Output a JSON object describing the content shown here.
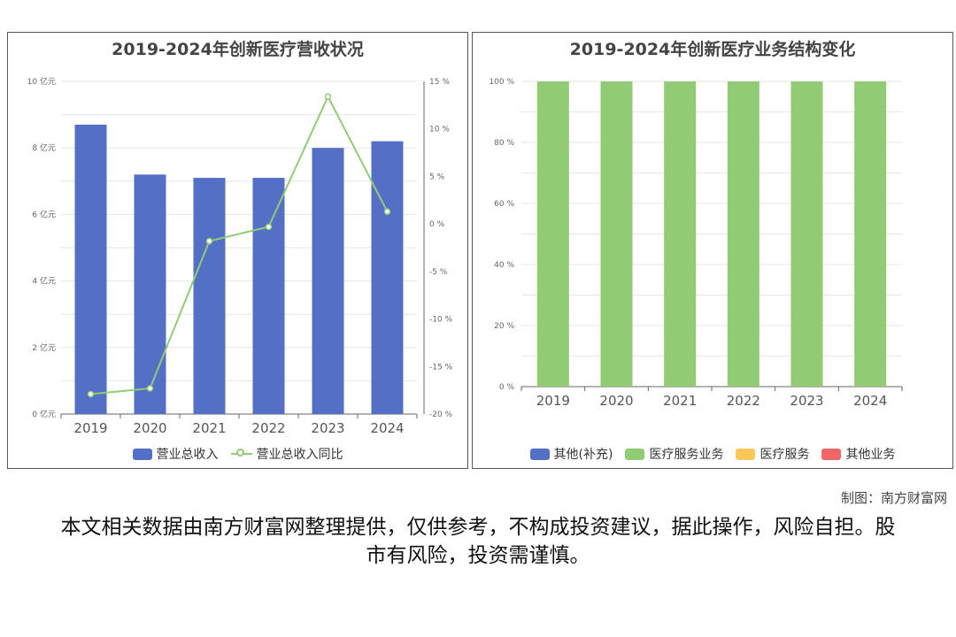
{
  "credit": "制图：南方财富网",
  "disclaimer": "本文相关数据由南方财富网整理提供，仅供参考，不构成投资建议，据此操作，风险自担。股市有风险，投资需谨慎。",
  "chart_data": [
    {
      "type": "bar",
      "title": "2019-2024年创新医疗营收状况",
      "categories": [
        "2019",
        "2020",
        "2021",
        "2022",
        "2023",
        "2024"
      ],
      "y_left": {
        "ticks": [
          "0 亿元",
          "2 亿元",
          "4 亿元",
          "6 亿元",
          "8 亿元",
          "10 亿元"
        ],
        "ylim": [
          0,
          10
        ]
      },
      "y_right": {
        "ticks": [
          "-20 %",
          "-15 %",
          "-10 %",
          "-5 %",
          "0 %",
          "5 %",
          "10 %",
          "15 %"
        ],
        "ylim": [
          -20,
          15
        ]
      },
      "series": [
        {
          "name": "营业总收入",
          "type": "bar",
          "axis": "left",
          "color": "#5470c6",
          "values": [
            8.7,
            7.2,
            7.1,
            7.1,
            8.0,
            8.2
          ]
        },
        {
          "name": "营业总收入同比",
          "type": "line",
          "axis": "right",
          "color": "#91cc75",
          "values": [
            -17.9,
            -17.3,
            -1.8,
            -0.3,
            13.4,
            1.3
          ]
        }
      ],
      "legend": "bottom",
      "grid": true
    },
    {
      "type": "bar",
      "stacked": true,
      "title": "2019-2024年创新医疗业务结构变化",
      "categories": [
        "2019",
        "2020",
        "2021",
        "2022",
        "2023",
        "2024"
      ],
      "y": {
        "ticks": [
          "0 %",
          "20 %",
          "40 %",
          "60 %",
          "80 %",
          "100 %"
        ],
        "ylim": [
          0,
          100
        ]
      },
      "series": [
        {
          "name": "其他(补充)",
          "color": "#5470c6",
          "values": [
            0,
            0,
            0,
            0,
            0,
            0
          ]
        },
        {
          "name": "医疗服务业务",
          "color": "#91cc75",
          "values": [
            100,
            100,
            100,
            100,
            100,
            100
          ]
        },
        {
          "name": "医疗服务",
          "color": "#fac858",
          "values": [
            0,
            0,
            0,
            0,
            0,
            0
          ]
        },
        {
          "name": "其他业务",
          "color": "#ee6666",
          "values": [
            0,
            0,
            0,
            0,
            0,
            0
          ]
        }
      ],
      "legend": "bottom",
      "grid": true
    }
  ]
}
